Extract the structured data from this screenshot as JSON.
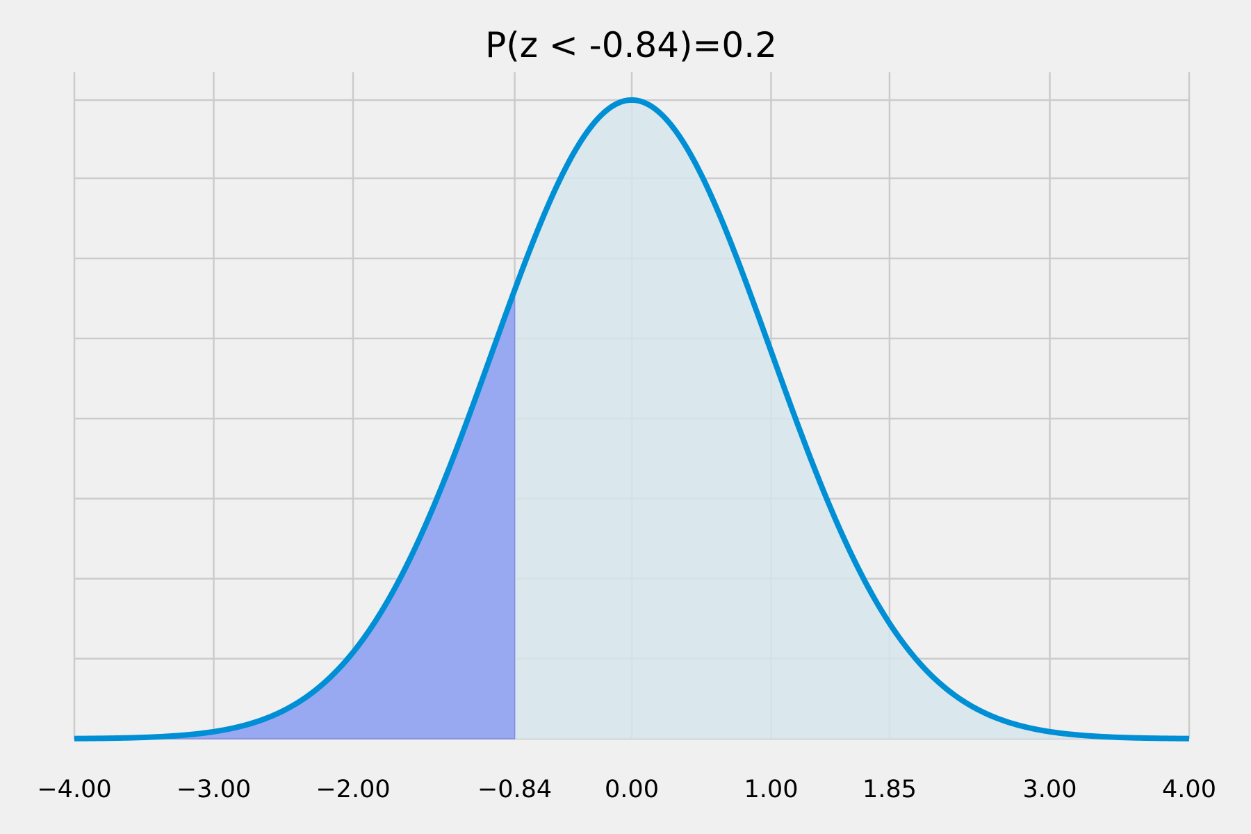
{
  "chart_data": {
    "type": "area",
    "title": "P(z < -0.84)=0.2",
    "xlabel": "",
    "ylabel": "",
    "xlim": [
      -4.0,
      4.0
    ],
    "ylim": [
      0,
      0.3989
    ],
    "x_ticks": [
      -4.0,
      -3.0,
      -2.0,
      -0.84,
      0.0,
      1.0,
      1.85,
      3.0,
      4.0
    ],
    "x_tick_labels": [
      "−4.00",
      "−3.00",
      "−2.00",
      "−0.84",
      "0.00",
      "1.00",
      "1.85",
      "3.00",
      "4.00"
    ],
    "y_gridlines": [
      0,
      0.05,
      0.1,
      0.15,
      0.2,
      0.25,
      0.3,
      0.35,
      0.4
    ],
    "y_tick_labels_visible": false,
    "grid": true,
    "series": [
      {
        "distribution": "standard-normal-pdf",
        "mean": 0,
        "std": 1,
        "line_color": "#008fd5",
        "fill_color": "#d6e5ec"
      }
    ],
    "shaded_region": {
      "from": -4.0,
      "to": -0.84,
      "probability": 0.2,
      "fill_color": "#96a5f1",
      "edge_color": "#7e8ee0"
    },
    "sample_points": [
      {
        "x": -4.0,
        "y": 0.0001
      },
      {
        "x": -3.0,
        "y": 0.0044
      },
      {
        "x": -2.0,
        "y": 0.054
      },
      {
        "x": -0.84,
        "y": 0.2803
      },
      {
        "x": 0.0,
        "y": 0.3989
      },
      {
        "x": 1.0,
        "y": 0.242
      },
      {
        "x": 1.85,
        "y": 0.0721
      },
      {
        "x": 3.0,
        "y": 0.0044
      },
      {
        "x": 4.0,
        "y": 0.0001
      }
    ]
  },
  "colors": {
    "background": "#f0f0f0",
    "grid": "#cbcbcb",
    "text": "#000000"
  }
}
